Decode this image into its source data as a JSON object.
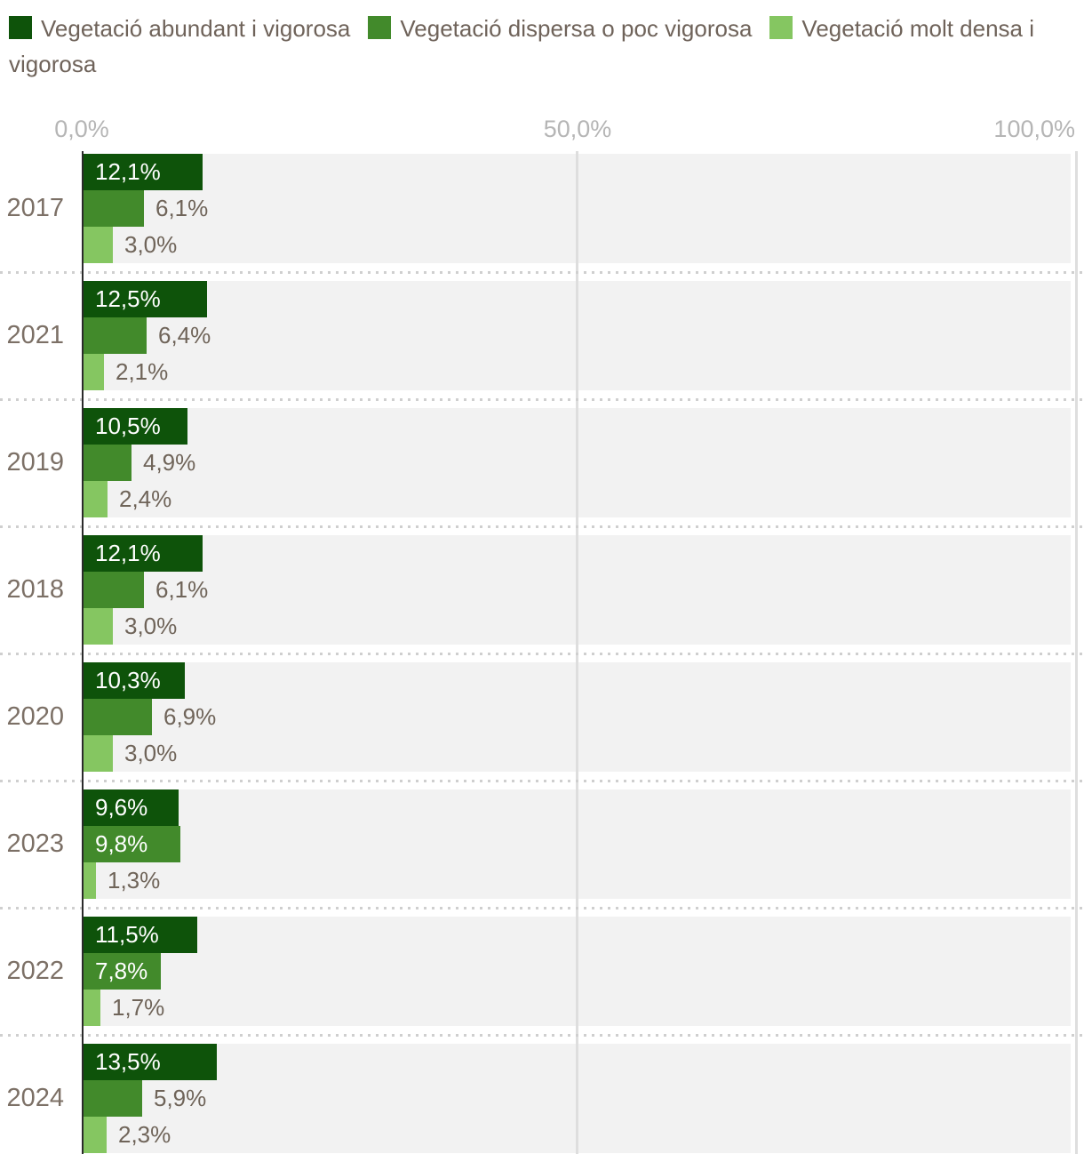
{
  "legend": {
    "items": [
      {
        "label": "Vegetació abundant i vigorosa",
        "color": "#0e530a"
      },
      {
        "label": "Vegetació dispersa o poc vigorosa",
        "color": "#428a2b"
      },
      {
        "label": "Vegetació molt densa i vigorosa",
        "color": "#85c661"
      }
    ]
  },
  "chart_data": {
    "type": "bar",
    "orientation": "horizontal",
    "title": "",
    "xlabel": "",
    "ylabel": "",
    "xlim": [
      0,
      100
    ],
    "x_tick_labels": [
      "0,0%",
      "50,0%",
      "100,0%"
    ],
    "grid": "vertical",
    "legend_position": "top",
    "value_format": "percent-comma-1-decimal",
    "categories": [
      "2017",
      "2021",
      "2019",
      "2018",
      "2020",
      "2023",
      "2022",
      "2024"
    ],
    "series": [
      {
        "name": "Vegetació abundant i vigorosa",
        "color": "#0e530a",
        "values": [
          12.1,
          12.5,
          10.5,
          12.1,
          10.3,
          9.6,
          11.5,
          13.5
        ],
        "labels": [
          "12,1%",
          "12,5%",
          "10,5%",
          "12,1%",
          "10,3%",
          "9,6%",
          "11,5%",
          "13,5%"
        ]
      },
      {
        "name": "Vegetació dispersa o poc vigorosa",
        "color": "#428a2b",
        "values": [
          6.1,
          6.4,
          4.9,
          6.1,
          6.9,
          9.8,
          7.8,
          5.9
        ],
        "labels": [
          "6,1%",
          "6,4%",
          "4,9%",
          "6,1%",
          "6,9%",
          "9,8%",
          "7,8%",
          "5,9%"
        ]
      },
      {
        "name": "Vegetació molt densa i vigorosa",
        "color": "#85c661",
        "values": [
          3.0,
          2.1,
          2.4,
          3.0,
          3.0,
          1.3,
          1.7,
          2.3
        ],
        "labels": [
          "3,0%",
          "2,1%",
          "2,4%",
          "3,0%",
          "3,0%",
          "1,3%",
          "1,7%",
          "2,3%"
        ]
      }
    ]
  },
  "colors": {
    "plot_band": "#f2f2f2",
    "gridline": "#dedede",
    "axis_line": "#2b2b2b",
    "separator_dots": "#cfcfcf",
    "tick_text": "#b5b5b5",
    "category_text": "#7c7066",
    "value_text_outside": "#6f6459",
    "value_text_inside": "#ffffff",
    "legend_text": "#6f635a"
  }
}
